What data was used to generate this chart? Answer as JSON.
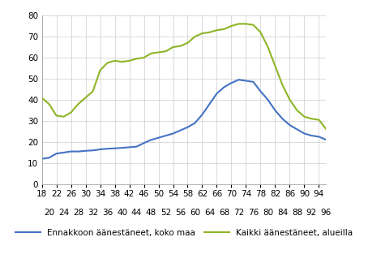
{
  "title": "",
  "xlabel": "",
  "ylabel": "",
  "xlim": [
    18,
    96
  ],
  "ylim": [
    0,
    80
  ],
  "yticks": [
    0,
    10,
    20,
    30,
    40,
    50,
    60,
    70,
    80
  ],
  "xticks_top": [
    18,
    22,
    26,
    30,
    34,
    38,
    42,
    46,
    50,
    54,
    58,
    62,
    66,
    70,
    74,
    78,
    82,
    86,
    90,
    94
  ],
  "xticks_bottom": [
    20,
    24,
    28,
    32,
    36,
    40,
    44,
    48,
    52,
    56,
    60,
    64,
    68,
    72,
    76,
    80,
    84,
    88,
    92,
    96
  ],
  "blue_x": [
    18,
    20,
    22,
    24,
    26,
    28,
    30,
    32,
    34,
    36,
    38,
    40,
    42,
    44,
    46,
    48,
    50,
    52,
    54,
    56,
    58,
    60,
    62,
    64,
    66,
    68,
    70,
    72,
    74,
    76,
    78,
    80,
    82,
    84,
    86,
    88,
    90,
    92,
    94,
    96
  ],
  "blue_y": [
    12,
    12.5,
    14.5,
    15,
    15.5,
    15.5,
    15.8,
    16,
    16.5,
    16.8,
    17,
    17.2,
    17.5,
    17.8,
    19.5,
    21,
    22,
    23,
    24,
    25.5,
    27,
    29,
    33,
    38,
    43,
    46,
    48,
    49.5,
    49,
    48.5,
    44,
    40,
    35,
    31,
    28,
    26,
    24,
    23,
    22.5,
    21
  ],
  "green_x": [
    18,
    20,
    22,
    24,
    26,
    28,
    30,
    32,
    34,
    36,
    38,
    40,
    42,
    44,
    46,
    48,
    50,
    52,
    54,
    56,
    58,
    60,
    62,
    64,
    66,
    68,
    70,
    72,
    74,
    76,
    78,
    80,
    82,
    84,
    86,
    88,
    90,
    92,
    94,
    96
  ],
  "green_y": [
    41,
    38,
    32.5,
    32,
    34,
    38,
    41,
    44,
    54,
    57.5,
    58.5,
    58,
    58.5,
    59.5,
    60,
    62,
    62.5,
    63,
    65,
    65.5,
    67,
    70,
    71.5,
    72,
    73,
    73.5,
    75,
    76,
    76,
    75.5,
    72,
    65,
    56,
    47,
    40,
    35,
    32,
    31,
    30.5,
    26
  ],
  "blue_color": "#4472c4",
  "green_color": "#8db526",
  "blue_label": "Ennakkoon äänestäneet, koko maa",
  "green_label": "Kaikki äänestäneet, alueilla",
  "background_color": "#ffffff",
  "grid_color": "#cccccc",
  "linewidth": 1.5,
  "tick_fontsize": 7.5,
  "legend_fontsize": 7.5
}
